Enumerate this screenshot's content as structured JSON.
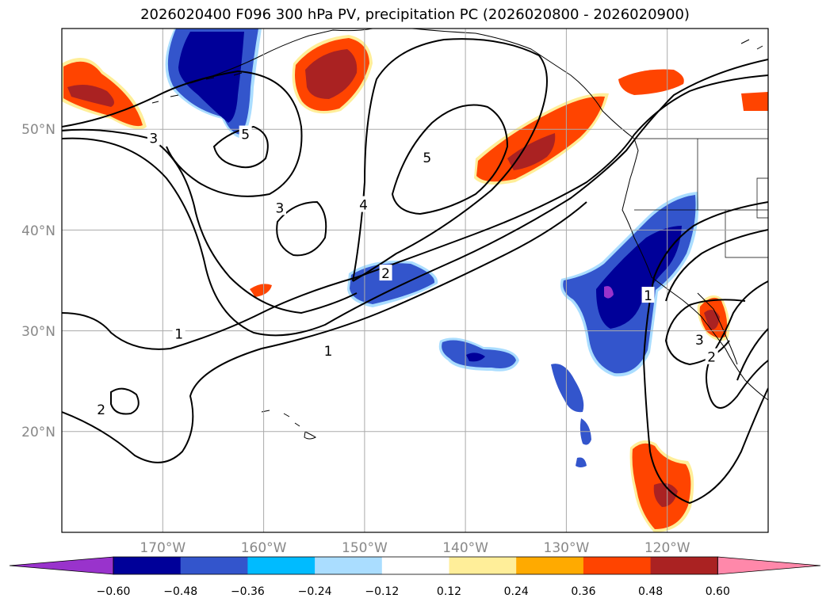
{
  "title": "2026020400 F096 300 hPa PV, precipitation PC (2026020800 - 2026020900)",
  "map": {
    "lon_range": [
      -180,
      -110
    ],
    "lat_range": [
      10,
      60
    ],
    "lon_ticks": [
      {
        "lon": -170,
        "label": "170°W"
      },
      {
        "lon": -160,
        "label": "160°W"
      },
      {
        "lon": -150,
        "label": "150°W"
      },
      {
        "lon": -140,
        "label": "140°W"
      },
      {
        "lon": -130,
        "label": "130°W"
      },
      {
        "lon": -120,
        "label": "120°W"
      }
    ],
    "lat_ticks": [
      {
        "lat": 20,
        "label": "20°N"
      },
      {
        "lat": 30,
        "label": "30°N"
      },
      {
        "lat": 40,
        "label": "40°N"
      },
      {
        "lat": 50,
        "label": "50°N"
      }
    ],
    "contour_labels": [
      {
        "text": "5",
        "lon": -161.8,
        "lat": 49.5
      },
      {
        "text": "3",
        "lon": -170.9,
        "lat": 49.1
      },
      {
        "text": "5",
        "lon": -143.8,
        "lat": 47.2
      },
      {
        "text": "3",
        "lon": -158.4,
        "lat": 42.2
      },
      {
        "text": "4",
        "lon": -150.1,
        "lat": 42.5
      },
      {
        "text": "2",
        "lon": -147.9,
        "lat": 35.7
      },
      {
        "text": "1",
        "lon": -168.4,
        "lat": 29.7
      },
      {
        "text": "1",
        "lon": -153.6,
        "lat": 28.0
      },
      {
        "text": "2",
        "lon": -176.1,
        "lat": 22.2
      },
      {
        "text": "3",
        "lon": -116.8,
        "lat": 29.1
      },
      {
        "text": "2",
        "lon": -115.6,
        "lat": 27.4
      },
      {
        "text": "1",
        "lon": -121.9,
        "lat": 33.5
      }
    ]
  },
  "colorbar": {
    "colors": [
      "#9933cc",
      "#000099",
      "#3355cc",
      "#00bbff",
      "#aaddff",
      "#ffffff",
      "#ffee99",
      "#ffaa00",
      "#ff4400",
      "#aa2222",
      "#ff88aa"
    ],
    "tick_labels": [
      "−0.60",
      "−0.48",
      "−0.36",
      "−0.24",
      "−0.12",
      "0.12",
      "0.24",
      "0.36",
      "0.48",
      "0.60"
    ]
  }
}
